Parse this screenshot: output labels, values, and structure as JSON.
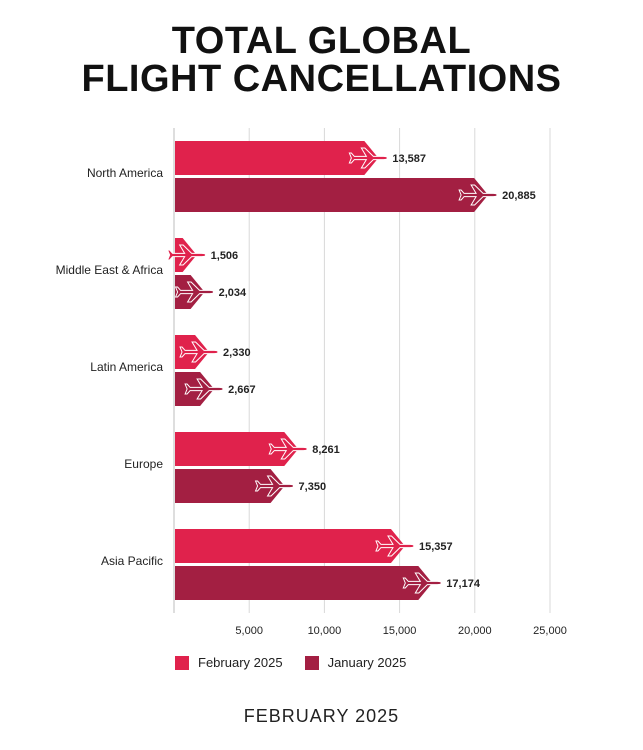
{
  "chart_data": {
    "type": "bar",
    "orientation": "horizontal",
    "title_lines": [
      "TOTAL GLOBAL",
      "FLIGHT CANCELLATIONS"
    ],
    "categories": [
      "North America",
      "Middle East & Africa",
      "Latin America",
      "Europe",
      "Asia Pacific"
    ],
    "series": [
      {
        "name": "February 2025",
        "color": "#e0224c",
        "values": [
          13587,
          1506,
          2330,
          8261,
          15357
        ],
        "labels": [
          "13,587",
          "1,506",
          "2,330",
          "8,261",
          "15,357"
        ]
      },
      {
        "name": "January 2025",
        "color": "#a31f42",
        "values": [
          20885,
          2034,
          2667,
          7350,
          17174
        ],
        "labels": [
          "20,885",
          "2,034",
          "2,667",
          "7,350",
          "17,174"
        ]
      }
    ],
    "xlim": [
      0,
      25000
    ],
    "xticks": [
      5000,
      10000,
      15000,
      20000,
      25000
    ],
    "xtick_labels": [
      "5,000",
      "10,000",
      "15,000",
      "20,000",
      "25,000"
    ],
    "grid": true,
    "legend_position": "bottom",
    "bar_marker_icon": "airplane-icon"
  },
  "footer": "FEBRUARY 2025"
}
